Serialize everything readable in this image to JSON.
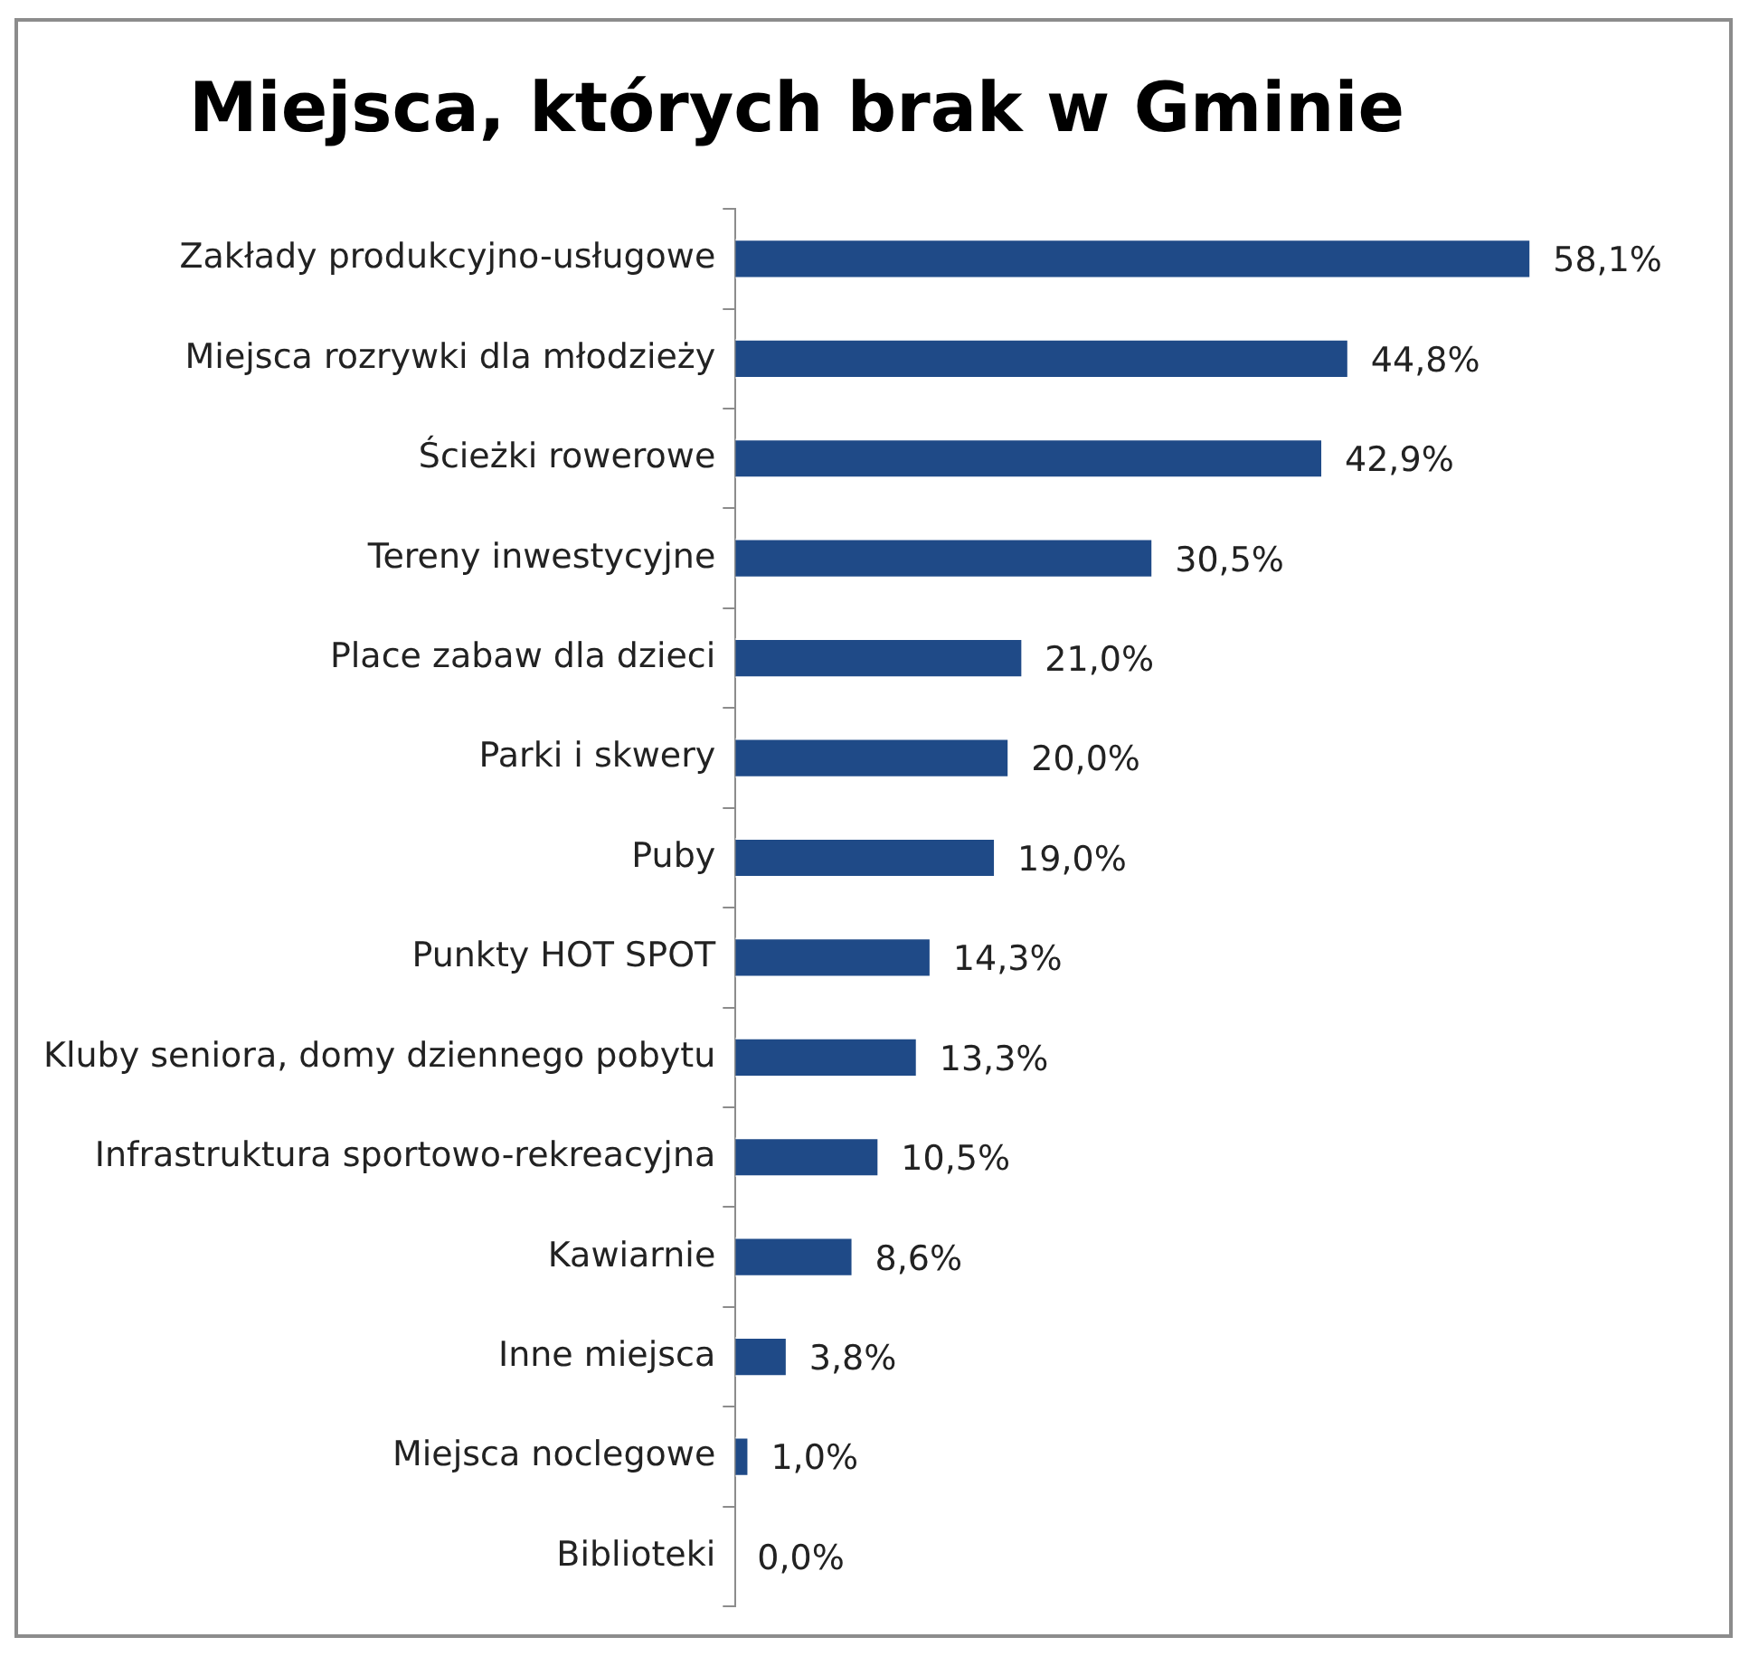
{
  "chart_data": {
    "type": "bar",
    "orientation": "horizontal",
    "title": "Miejsca, których brak w Gminie",
    "categories": [
      "Zakłady produkcyjno-usługowe",
      "Miejsca rozrywki dla młodzieży",
      "Ścieżki rowerowe",
      "Tereny inwestycyjne",
      "Place zabaw dla dzieci",
      "Parki i skwery",
      "Puby",
      "Punkty HOT SPOT",
      "Kluby seniora, domy dziennego pobytu",
      "Infrastruktura sportowo-rekreacyjna",
      "Kawiarnie",
      "Inne miejsca",
      "Miejsca noclegowe",
      "Biblioteki"
    ],
    "values": [
      58.1,
      44.8,
      42.9,
      30.5,
      21.0,
      20.0,
      19.0,
      14.3,
      13.3,
      10.5,
      8.6,
      3.8,
      1.0,
      0.0
    ],
    "value_labels": [
      "58,1%",
      "44,8%",
      "42,9%",
      "30,5%",
      "21,0%",
      "20,0%",
      "19,0%",
      "14,3%",
      "13,3%",
      "10,5%",
      "8,6%",
      "3,8%",
      "1,0%",
      "0,0%"
    ],
    "color": "#1f4a87",
    "legend": false,
    "tick_labels": "y"
  }
}
